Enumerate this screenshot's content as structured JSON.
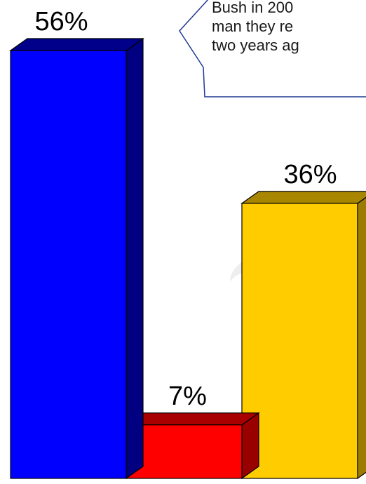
{
  "chart_data": {
    "type": "bar",
    "categories": [
      "",
      "",
      ""
    ],
    "values": [
      56,
      7,
      36
    ],
    "data_labels": [
      "56%",
      "7%",
      "36%"
    ],
    "colors": {
      "front": [
        "#0000ff",
        "#ff0000",
        "#ffcc00"
      ],
      "top": [
        "#00008b",
        "#a80000",
        "#a88600"
      ],
      "side": [
        "#000080",
        "#990000",
        "#9c7c00"
      ]
    },
    "three_d": true,
    "title": "",
    "xlabel": "",
    "ylabel": "",
    "grid": false,
    "legend": "none"
  },
  "callout": {
    "lines": [
      "Bush in 200",
      "man they re",
      "two years ag"
    ],
    "border_color": "#1f3a93",
    "background": "#ffffff"
  },
  "watermark": {
    "color": "#eeeeee"
  }
}
